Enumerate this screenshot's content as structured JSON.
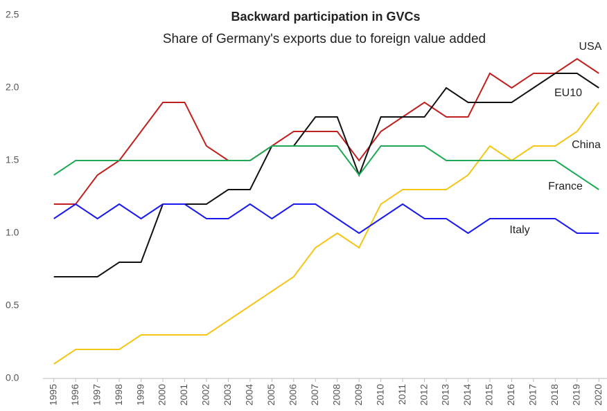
{
  "chart_data": {
    "type": "line",
    "title": "Backward participation in GVCs",
    "subtitle": "Share of Germany's exports due to foreign value added",
    "categories": [
      "1995",
      "1996",
      "1997",
      "1998",
      "1999",
      "2000",
      "2001",
      "2002",
      "2003",
      "2004",
      "2005",
      "2006",
      "2007",
      "2008",
      "2009",
      "2010",
      "2011",
      "2012",
      "2013",
      "2014",
      "2015",
      "2016",
      "2017",
      "2018",
      "2019",
      "2020"
    ],
    "series": [
      {
        "name": "USA",
        "color": "#c0201f",
        "values": [
          1.2,
          1.2,
          1.4,
          1.5,
          1.7,
          1.9,
          1.9,
          1.6,
          1.5,
          1.5,
          1.6,
          1.7,
          1.7,
          1.7,
          1.5,
          1.7,
          1.8,
          1.9,
          1.8,
          1.8,
          2.1,
          2.0,
          2.1,
          2.1,
          2.2,
          2.1
        ]
      },
      {
        "name": "EU10",
        "color": "#111111",
        "values": [
          0.7,
          0.7,
          0.7,
          0.8,
          0.8,
          1.2,
          1.2,
          1.2,
          1.3,
          1.3,
          1.6,
          1.6,
          1.8,
          1.8,
          1.4,
          1.8,
          1.8,
          1.8,
          2.0,
          1.9,
          1.9,
          1.9,
          2.0,
          2.1,
          2.1,
          2.0
        ]
      },
      {
        "name": "China",
        "color": "#f5c518",
        "values": [
          0.1,
          0.2,
          0.2,
          0.2,
          0.3,
          0.3,
          0.3,
          0.3,
          0.4,
          0.5,
          0.6,
          0.7,
          0.9,
          1.0,
          0.9,
          1.2,
          1.3,
          1.3,
          1.3,
          1.4,
          1.6,
          1.5,
          1.6,
          1.6,
          1.7,
          1.9
        ]
      },
      {
        "name": "France",
        "color": "#1eaa55",
        "values": [
          1.4,
          1.5,
          1.5,
          1.5,
          1.5,
          1.5,
          1.5,
          1.5,
          1.5,
          1.5,
          1.6,
          1.6,
          1.6,
          1.6,
          1.4,
          1.6,
          1.6,
          1.6,
          1.5,
          1.5,
          1.5,
          1.5,
          1.5,
          1.5,
          1.4,
          1.3
        ]
      },
      {
        "name": "Italy",
        "color": "#1a1aee",
        "values": [
          1.1,
          1.2,
          1.1,
          1.2,
          1.1,
          1.2,
          1.2,
          1.1,
          1.1,
          1.2,
          1.1,
          1.2,
          1.2,
          1.1,
          1.0,
          1.1,
          1.2,
          1.1,
          1.1,
          1.0,
          1.1,
          1.1,
          1.1,
          1.1,
          1.0,
          1.0
        ]
      }
    ],
    "ylim": [
      0,
      2.5
    ],
    "yticks": [
      {
        "value": 0,
        "label": "0.0"
      },
      0.5,
      {
        "value": 1,
        "label": "1.0"
      },
      1.5,
      {
        "value": 2,
        "label": "2.0"
      },
      2.5
    ],
    "grid": false
  }
}
